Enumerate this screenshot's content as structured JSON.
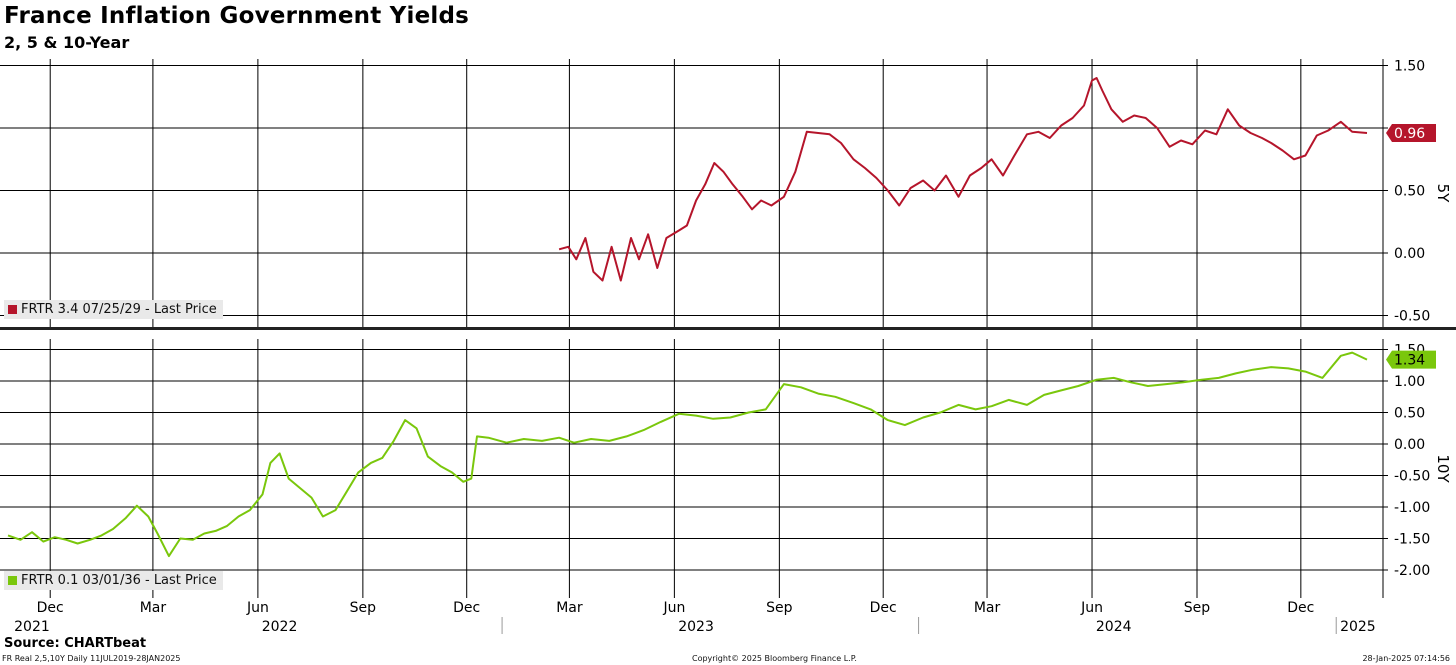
{
  "header": {
    "title": "France Inflation Government Yields",
    "subtitle": "2, 5 & 10-Year"
  },
  "legend": {
    "top": "FRTR 3.4 07/25/29 - Last Price",
    "bottom": "FRTR 0.1 03/01/36 - Last Price"
  },
  "footer": {
    "source": "Source: CHARTbeat",
    "left": "FR Real 2,5,10Y  Daily 11JUL2019-28JAN2025",
    "center": "Copyright© 2025 Bloomberg Finance L.P.",
    "right": "28-Jan-2025 07:14:56"
  },
  "colors": {
    "series_5y": "#b5152b",
    "series_10y": "#7ac70c",
    "grid": "#000000",
    "legend_bg": "#e9e9e9"
  },
  "chart_data": [
    {
      "type": "line",
      "panel": "top",
      "axis_side_label": "5Y",
      "ylim": [
        -0.6,
        1.55
      ],
      "yticks": [
        1.5,
        1.0,
        0.5,
        0.0,
        -0.5
      ],
      "ytick_labels": [
        "1.50",
        "",
        "0.50",
        "0.00",
        "-0.50"
      ],
      "last_value_label": "0.96",
      "grid": true,
      "series": [
        {
          "name": "FRTR 3.4 07/25/29 - Last Price",
          "x": [
            "2023-02-20",
            "2023-02-28",
            "2023-03-07",
            "2023-03-15",
            "2023-03-22",
            "2023-03-30",
            "2023-04-07",
            "2023-04-15",
            "2023-04-24",
            "2023-05-01",
            "2023-05-09",
            "2023-05-17",
            "2023-05-25",
            "2023-06-05",
            "2023-06-12",
            "2023-06-20",
            "2023-06-28",
            "2023-07-06",
            "2023-07-14",
            "2023-07-22",
            "2023-07-31",
            "2023-08-08",
            "2023-08-16",
            "2023-08-25",
            "2023-09-05",
            "2023-09-15",
            "2023-09-25",
            "2023-10-05",
            "2023-10-15",
            "2023-10-25",
            "2023-11-05",
            "2023-11-15",
            "2023-11-25",
            "2023-12-05",
            "2023-12-15",
            "2023-12-25",
            "2024-01-05",
            "2024-01-15",
            "2024-01-25",
            "2024-02-05",
            "2024-02-15",
            "2024-02-25",
            "2024-03-05",
            "2024-03-15",
            "2024-03-25",
            "2024-04-05",
            "2024-04-15",
            "2024-04-25",
            "2024-05-05",
            "2024-05-15",
            "2024-05-25",
            "2024-06-01",
            "2024-06-05",
            "2024-06-10",
            "2024-06-18",
            "2024-06-28",
            "2024-07-08",
            "2024-07-18",
            "2024-07-28",
            "2024-08-08",
            "2024-08-18",
            "2024-08-28",
            "2024-09-08",
            "2024-09-18",
            "2024-09-28",
            "2024-10-08",
            "2024-10-18",
            "2024-10-28",
            "2024-11-05",
            "2024-11-15",
            "2024-11-25",
            "2024-12-05",
            "2024-12-15",
            "2024-12-25",
            "2025-01-05",
            "2025-01-15",
            "2025-01-28"
          ],
          "y": [
            0.03,
            0.05,
            -0.05,
            0.12,
            -0.15,
            -0.22,
            0.05,
            -0.22,
            0.12,
            -0.05,
            0.15,
            -0.12,
            0.12,
            0.18,
            0.22,
            0.42,
            0.55,
            0.72,
            0.65,
            0.55,
            0.45,
            0.35,
            0.42,
            0.38,
            0.45,
            0.65,
            0.97,
            0.96,
            0.95,
            0.88,
            0.75,
            0.68,
            0.6,
            0.5,
            0.38,
            0.52,
            0.58,
            0.5,
            0.62,
            0.45,
            0.62,
            0.68,
            0.75,
            0.62,
            0.78,
            0.95,
            0.97,
            0.92,
            1.02,
            1.08,
            1.18,
            1.38,
            1.4,
            1.3,
            1.15,
            1.05,
            1.1,
            1.08,
            1.0,
            0.85,
            0.9,
            0.87,
            0.98,
            0.95,
            1.15,
            1.02,
            0.96,
            0.92,
            0.88,
            0.82,
            0.75,
            0.78,
            0.94,
            0.98,
            1.05,
            0.97,
            0.96
          ]
        }
      ]
    },
    {
      "type": "line",
      "panel": "bottom",
      "axis_side_label": "10Y",
      "ylim": [
        -2.25,
        1.55
      ],
      "yticks": [
        1.5,
        1.0,
        0.5,
        0.0,
        -0.5,
        -1.0,
        -1.5,
        -2.0
      ],
      "ytick_labels": [
        "1.50",
        "1.00",
        "0.50",
        "0.00",
        "-0.50",
        "-1.00",
        "-1.50",
        "-2.00"
      ],
      "last_value_label": "1.34",
      "grid": true,
      "series": [
        {
          "name": "FRTR 0.1 03/01/36 - Last Price",
          "x": [
            "2021-10-25",
            "2021-11-05",
            "2021-11-15",
            "2021-11-25",
            "2021-12-05",
            "2021-12-15",
            "2021-12-25",
            "2022-01-05",
            "2022-01-15",
            "2022-01-25",
            "2022-02-05",
            "2022-02-15",
            "2022-02-25",
            "2022-03-05",
            "2022-03-15",
            "2022-03-25",
            "2022-04-05",
            "2022-04-15",
            "2022-04-25",
            "2022-05-05",
            "2022-05-15",
            "2022-05-25",
            "2022-06-05",
            "2022-06-12",
            "2022-06-20",
            "2022-06-28",
            "2022-07-08",
            "2022-07-18",
            "2022-07-28",
            "2022-08-08",
            "2022-08-18",
            "2022-08-28",
            "2022-09-08",
            "2022-09-18",
            "2022-09-28",
            "2022-10-08",
            "2022-10-18",
            "2022-10-28",
            "2022-11-08",
            "2022-11-18",
            "2022-11-28",
            "2022-12-05",
            "2022-12-10",
            "2022-12-20",
            "2023-01-05",
            "2023-01-20",
            "2023-02-05",
            "2023-02-20",
            "2023-03-05",
            "2023-03-20",
            "2023-04-05",
            "2023-04-20",
            "2023-05-05",
            "2023-05-20",
            "2023-06-05",
            "2023-06-20",
            "2023-07-05",
            "2023-07-20",
            "2023-08-05",
            "2023-08-20",
            "2023-09-05",
            "2023-09-20",
            "2023-10-05",
            "2023-10-20",
            "2023-11-05",
            "2023-11-20",
            "2023-12-05",
            "2023-12-20",
            "2024-01-05",
            "2024-01-20",
            "2024-02-05",
            "2024-02-20",
            "2024-03-05",
            "2024-03-20",
            "2024-04-05",
            "2024-04-20",
            "2024-05-05",
            "2024-05-20",
            "2024-06-05",
            "2024-06-20",
            "2024-07-05",
            "2024-07-20",
            "2024-08-05",
            "2024-08-20",
            "2024-09-05",
            "2024-09-20",
            "2024-10-05",
            "2024-10-20",
            "2024-11-05",
            "2024-11-20",
            "2024-12-05",
            "2024-12-20",
            "2025-01-05",
            "2025-01-15",
            "2025-01-28"
          ],
          "y": [
            -1.45,
            -1.52,
            -1.4,
            -1.55,
            -1.48,
            -1.52,
            -1.58,
            -1.52,
            -1.45,
            -1.35,
            -1.18,
            -0.98,
            -1.15,
            -1.42,
            -1.78,
            -1.5,
            -1.52,
            -1.42,
            -1.38,
            -1.3,
            -1.15,
            -1.05,
            -0.8,
            -0.3,
            -0.15,
            -0.55,
            -0.7,
            -0.85,
            -1.15,
            -1.05,
            -0.75,
            -0.45,
            -0.3,
            -0.22,
            0.05,
            0.38,
            0.25,
            -0.2,
            -0.35,
            -0.45,
            -0.6,
            -0.55,
            0.12,
            0.1,
            0.02,
            0.08,
            0.05,
            0.1,
            0.02,
            0.08,
            0.05,
            0.12,
            0.22,
            0.35,
            0.48,
            0.45,
            0.4,
            0.42,
            0.5,
            0.55,
            0.95,
            0.9,
            0.8,
            0.75,
            0.65,
            0.55,
            0.38,
            0.3,
            0.42,
            0.5,
            0.62,
            0.55,
            0.6,
            0.7,
            0.62,
            0.78,
            0.85,
            0.92,
            1.02,
            1.05,
            0.98,
            0.92,
            0.95,
            0.98,
            1.02,
            1.05,
            1.12,
            1.18,
            1.22,
            1.2,
            1.15,
            1.05,
            1.4,
            1.45,
            1.34
          ]
        }
      ]
    }
  ],
  "x_axis": {
    "months": [
      {
        "date": "2021-12-01",
        "label": "Dec"
      },
      {
        "date": "2022-03-01",
        "label": "Mar"
      },
      {
        "date": "2022-06-01",
        "label": "Jun"
      },
      {
        "date": "2022-09-01",
        "label": "Sep"
      },
      {
        "date": "2022-12-01",
        "label": "Dec"
      },
      {
        "date": "2023-03-01",
        "label": "Mar"
      },
      {
        "date": "2023-06-01",
        "label": "Jun"
      },
      {
        "date": "2023-09-01",
        "label": "Sep"
      },
      {
        "date": "2023-12-01",
        "label": "Dec"
      },
      {
        "date": "2024-03-01",
        "label": "Mar"
      },
      {
        "date": "2024-06-01",
        "label": "Jun"
      },
      {
        "date": "2024-09-01",
        "label": "Sep"
      },
      {
        "date": "2024-12-01",
        "label": "Dec"
      }
    ],
    "years": [
      {
        "label": "2021",
        "center": "2021-11-15"
      },
      {
        "label": "2022",
        "center": "2022-06-20"
      },
      {
        "label": "2023",
        "center": "2023-06-20"
      },
      {
        "label": "2024",
        "center": "2024-06-20"
      },
      {
        "label": "2025",
        "center": "2025-01-20"
      }
    ],
    "year_boundaries": [
      "2023-01-01",
      "2024-01-01",
      "2025-01-01"
    ]
  }
}
